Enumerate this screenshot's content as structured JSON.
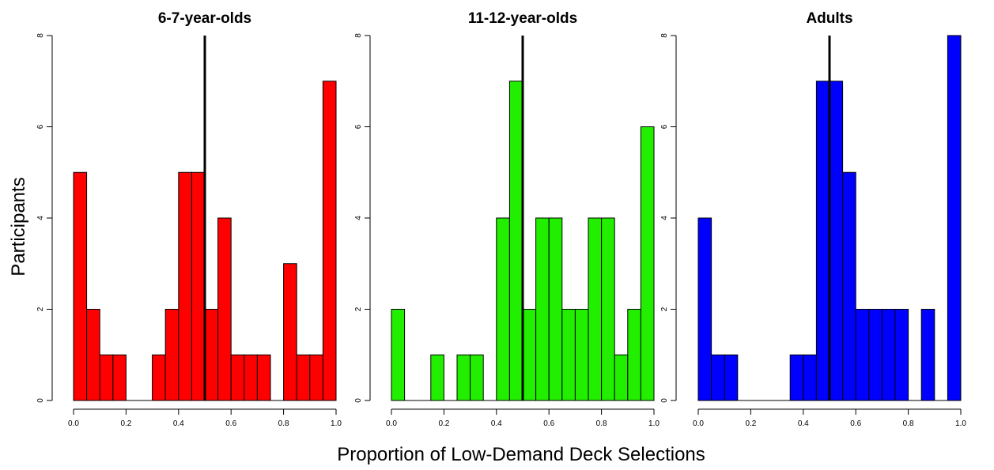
{
  "xlabel": "Proportion of Low-Demand Deck Selections",
  "ylabel": "Participants",
  "chart_data": [
    {
      "type": "bar",
      "title": "6-7-year-olds",
      "color": "#ff0000",
      "bin_width": 0.05,
      "bin_starts": [
        0.0,
        0.05,
        0.1,
        0.15,
        0.2,
        0.25,
        0.3,
        0.35,
        0.4,
        0.45,
        0.5,
        0.55,
        0.6,
        0.65,
        0.7,
        0.75,
        0.8,
        0.85,
        0.9,
        0.95
      ],
      "values": [
        5,
        2,
        1,
        1,
        0,
        0,
        1,
        2,
        5,
        5,
        2,
        4,
        1,
        1,
        1,
        0,
        3,
        1,
        1,
        7
      ],
      "xlim": [
        0,
        1
      ],
      "ylim": [
        0,
        8
      ],
      "xticks": [
        "0.0",
        "0.2",
        "0.4",
        "0.6",
        "0.8",
        "1.0"
      ],
      "yticks": [
        "0",
        "2",
        "4",
        "6",
        "8"
      ],
      "reference_line": 0.5
    },
    {
      "type": "bar",
      "title": "11-12-year-olds",
      "color": "#22ee00",
      "bin_width": 0.05,
      "bin_starts": [
        0.0,
        0.05,
        0.1,
        0.15,
        0.2,
        0.25,
        0.3,
        0.35,
        0.4,
        0.45,
        0.5,
        0.55,
        0.6,
        0.65,
        0.7,
        0.75,
        0.8,
        0.85,
        0.9,
        0.95
      ],
      "values": [
        2,
        0,
        0,
        1,
        0,
        1,
        1,
        0,
        4,
        7,
        2,
        4,
        4,
        2,
        2,
        4,
        4,
        1,
        2,
        6
      ],
      "xlim": [
        0,
        1
      ],
      "ylim": [
        0,
        8
      ],
      "xticks": [
        "0.0",
        "0.2",
        "0.4",
        "0.6",
        "0.8",
        "1.0"
      ],
      "yticks": [
        "0",
        "2",
        "4",
        "6",
        "8"
      ],
      "reference_line": 0.5
    },
    {
      "type": "bar",
      "title": "Adults",
      "color": "#0000ff",
      "bin_width": 0.05,
      "bin_starts": [
        0.0,
        0.05,
        0.1,
        0.15,
        0.2,
        0.25,
        0.3,
        0.35,
        0.4,
        0.45,
        0.5,
        0.55,
        0.6,
        0.65,
        0.7,
        0.75,
        0.8,
        0.85,
        0.9,
        0.95
      ],
      "values": [
        4,
        1,
        1,
        0,
        0,
        0,
        0,
        1,
        1,
        7,
        7,
        5,
        2,
        2,
        2,
        2,
        0,
        2,
        0,
        8
      ],
      "xlim": [
        0,
        1
      ],
      "ylim": [
        0,
        8
      ],
      "xticks": [
        "0.0",
        "0.2",
        "0.4",
        "0.6",
        "0.8",
        "1.0"
      ],
      "yticks": [
        "0",
        "2",
        "4",
        "6",
        "8"
      ],
      "reference_line": 0.5
    }
  ]
}
